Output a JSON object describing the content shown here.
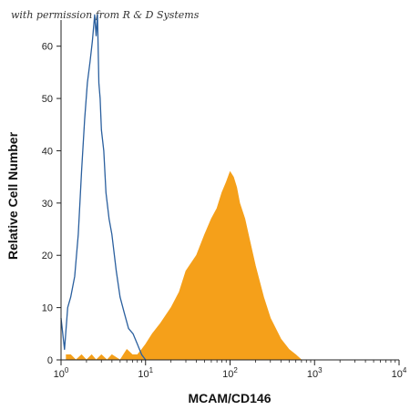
{
  "credit_text": "with permission from R & D Systems",
  "chart_data": {
    "type": "histogram",
    "xlabel": "MCAM/CD146",
    "ylabel": "Relative Cell Number",
    "x_scale": "log",
    "xlim": [
      1,
      10000
    ],
    "ylim": [
      0,
      65
    ],
    "x_ticks": [
      {
        "value": 1,
        "base": "10",
        "exp": "0"
      },
      {
        "value": 10,
        "base": "10",
        "exp": "1"
      },
      {
        "value": 100,
        "base": "10",
        "exp": "2"
      },
      {
        "value": 1000,
        "base": "10",
        "exp": "3"
      },
      {
        "value": 10000,
        "base": "10",
        "exp": "4"
      }
    ],
    "y_ticks": [
      {
        "value": 0,
        "label": "0"
      },
      {
        "value": 10,
        "label": "10"
      },
      {
        "value": 20,
        "label": "20"
      },
      {
        "value": 30,
        "label": "30"
      },
      {
        "value": 40,
        "label": "40"
      },
      {
        "value": 50,
        "label": "50"
      },
      {
        "value": 60,
        "label": "60"
      }
    ],
    "grid": false,
    "legend": "none",
    "series": [
      {
        "style": "outline",
        "color": "#2a5f9e",
        "x": [
          1.0,
          1.1,
          1.2,
          1.3,
          1.45,
          1.6,
          1.75,
          1.9,
          2.05,
          2.2,
          2.35,
          2.5,
          2.6,
          2.7,
          2.8,
          2.9,
          3.0,
          3.2,
          3.4,
          3.7,
          4.0,
          4.5,
          5.0,
          5.6,
          6.3,
          7.1,
          8.0,
          9.0,
          10.0
        ],
        "y": [
          8,
          2,
          10,
          12,
          16,
          24,
          36,
          46,
          53,
          57,
          61,
          66,
          62,
          66,
          53,
          50,
          44,
          40,
          32,
          27,
          24,
          17,
          12,
          9,
          6,
          5,
          3,
          1,
          0
        ]
      },
      {
        "style": "filled",
        "color": "#f5a01a",
        "x": [
          1.15,
          1.3,
          1.5,
          1.75,
          2.0,
          2.3,
          2.6,
          3.0,
          3.5,
          4.0,
          5.0,
          6.0,
          7.0,
          8.0,
          9.0,
          10.0,
          12.0,
          15.0,
          20.0,
          25.0,
          30.0,
          40.0,
          50.0,
          60.0,
          70.0,
          80.0,
          90.0,
          100.0,
          110.0,
          120.0,
          130.0,
          150.0,
          170.0,
          200.0,
          250.0,
          300.0,
          400.0,
          500.0,
          600.0,
          700.0
        ],
        "y": [
          1,
          1,
          0,
          1,
          0,
          1,
          0,
          1,
          0,
          1,
          0,
          2,
          1,
          1,
          2,
          3,
          5,
          7,
          10,
          13,
          17,
          20,
          24,
          27,
          29,
          32,
          34,
          36,
          35,
          33,
          30,
          27,
          23,
          18,
          12,
          8,
          4,
          2,
          1,
          0
        ]
      }
    ]
  }
}
